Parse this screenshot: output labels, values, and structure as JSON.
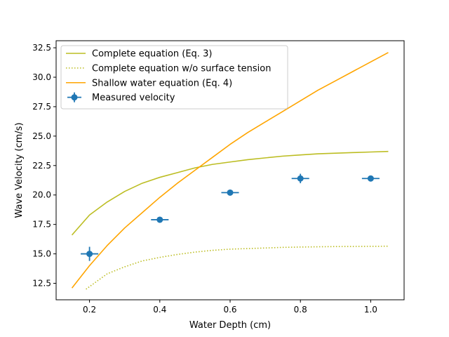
{
  "chart_data": {
    "type": "line",
    "title": "",
    "xlabel": "Water Depth (cm)",
    "ylabel": "Wave Velocity (cm/s)",
    "xlim": [
      0.105,
      1.095
    ],
    "ylim": [
      11.1,
      33.1
    ],
    "xticks": [
      0.2,
      0.4,
      0.6,
      0.8,
      1.0
    ],
    "xtick_labels": [
      "0.2",
      "0.4",
      "0.6",
      "0.8",
      "1.0"
    ],
    "yticks": [
      12.5,
      15.0,
      17.5,
      20.0,
      22.5,
      25.0,
      27.5,
      30.0,
      32.5
    ],
    "ytick_labels": [
      "12.5",
      "15.0",
      "17.5",
      "20.0",
      "22.5",
      "25.0",
      "27.5",
      "30.0",
      "32.5"
    ],
    "grid": false,
    "legend_position": "top-left",
    "series": [
      {
        "name": "Complete equation (Eq. 3)",
        "color": "#bcbd22",
        "style": "solid",
        "x": [
          0.15,
          0.2,
          0.25,
          0.3,
          0.35,
          0.4,
          0.45,
          0.5,
          0.55,
          0.6,
          0.65,
          0.7,
          0.75,
          0.8,
          0.85,
          0.9,
          0.95,
          1.0,
          1.05
        ],
        "y": [
          16.6,
          18.3,
          19.4,
          20.3,
          21.0,
          21.5,
          21.9,
          22.3,
          22.6,
          22.8,
          23.0,
          23.15,
          23.3,
          23.4,
          23.5,
          23.55,
          23.6,
          23.65,
          23.7
        ]
      },
      {
        "name": "Complete equation w/o surface tension",
        "color": "#bcbd22",
        "style": "dotted",
        "x": [
          0.19,
          0.25,
          0.3,
          0.35,
          0.4,
          0.45,
          0.5,
          0.55,
          0.6,
          0.65,
          0.7,
          0.75,
          0.8,
          0.85,
          0.9,
          0.95,
          1.0,
          1.05
        ],
        "y": [
          12.0,
          13.3,
          13.9,
          14.4,
          14.7,
          14.95,
          15.15,
          15.3,
          15.4,
          15.45,
          15.5,
          15.55,
          15.58,
          15.6,
          15.62,
          15.63,
          15.64,
          15.65
        ]
      },
      {
        "name": "Shallow water equation (Eq. 4)",
        "color": "#ffa500",
        "style": "solid",
        "x": [
          0.15,
          0.2,
          0.25,
          0.3,
          0.35,
          0.4,
          0.45,
          0.5,
          0.55,
          0.6,
          0.65,
          0.7,
          0.75,
          0.8,
          0.85,
          0.9,
          0.95,
          1.0,
          1.05
        ],
        "y": [
          12.1,
          14.0,
          15.7,
          17.2,
          18.5,
          19.8,
          21.0,
          22.1,
          23.2,
          24.3,
          25.3,
          26.2,
          27.1,
          28.0,
          28.9,
          29.7,
          30.5,
          31.3,
          32.1
        ]
      },
      {
        "name": "Measured velocity",
        "color": "#1f77b4",
        "style": "errorbar",
        "x": [
          0.2,
          0.4,
          0.6,
          0.8,
          1.0
        ],
        "y": [
          15.0,
          17.9,
          20.2,
          21.4,
          21.4
        ],
        "xerr": [
          0.025,
          0.025,
          0.025,
          0.025,
          0.025
        ],
        "yerr": [
          0.6,
          0.2,
          0.2,
          0.4,
          0.2
        ]
      }
    ]
  }
}
